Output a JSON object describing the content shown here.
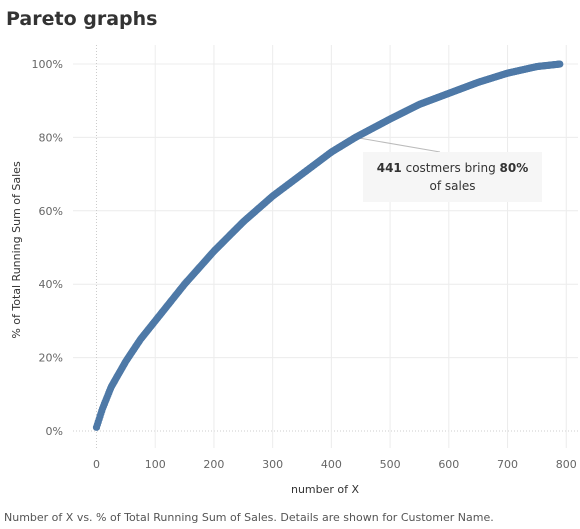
{
  "title": "Pareto graphs",
  "caption": "Number of X vs. % of Total Running Sum of Sales.  Details are shown for Customer Name.",
  "chart_data": {
    "type": "scatter",
    "xlabel": "number of X",
    "ylabel": "% of Total Running Sum of Sales",
    "xlim": [
      -40,
      820
    ],
    "ylim": [
      0,
      100
    ],
    "x_ticks": [
      0,
      100,
      200,
      300,
      400,
      500,
      600,
      700,
      800
    ],
    "x_tick_labels": [
      "0",
      "100",
      "200",
      "300",
      "400",
      "500",
      "600",
      "700",
      "800"
    ],
    "y_ticks": [
      0,
      20,
      40,
      60,
      80,
      100
    ],
    "y_tick_labels": [
      "0%",
      "20%",
      "40%",
      "60%",
      "80%",
      "100%"
    ],
    "grid": true,
    "series_color": "#4e79a7",
    "points": [
      [
        0,
        1
      ],
      [
        10,
        6
      ],
      [
        25,
        12
      ],
      [
        50,
        19
      ],
      [
        75,
        25
      ],
      [
        100,
        30
      ],
      [
        150,
        40
      ],
      [
        200,
        49
      ],
      [
        250,
        57
      ],
      [
        300,
        64
      ],
      [
        350,
        70
      ],
      [
        400,
        76
      ],
      [
        441,
        80
      ],
      [
        500,
        85
      ],
      [
        550,
        89
      ],
      [
        600,
        92
      ],
      [
        650,
        95
      ],
      [
        700,
        97.5
      ],
      [
        750,
        99.3
      ],
      [
        790,
        100
      ]
    ],
    "annotation": {
      "count": "441",
      "text_middle": " costmers bring ",
      "percent": "80%",
      "text_end": "of sales",
      "x": 441,
      "y": 80
    }
  }
}
